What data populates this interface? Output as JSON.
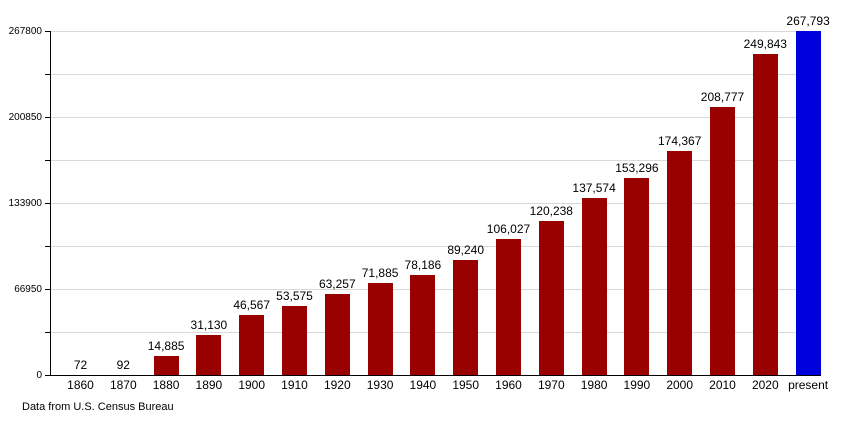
{
  "chart_data": {
    "type": "bar",
    "title": "",
    "categories": [
      "1860",
      "1870",
      "1880",
      "1890",
      "1900",
      "1910",
      "1920",
      "1930",
      "1940",
      "1950",
      "1960",
      "1970",
      "1980",
      "1990",
      "2000",
      "2010",
      "2020",
      "present"
    ],
    "values": [
      72,
      92,
      14885,
      31130,
      46567,
      53575,
      63257,
      71885,
      78186,
      89240,
      106027,
      120238,
      137574,
      153296,
      174367,
      208777,
      249843,
      267793
    ],
    "value_labels": [
      "72",
      "92",
      "14,885",
      "31,130",
      "46,567",
      "53,575",
      "63,257",
      "71,885",
      "78,186",
      "89,240",
      "106,027",
      "120,238",
      "137,574",
      "153,296",
      "174,367",
      "208,777",
      "249,843",
      "267,793"
    ],
    "xlabel": "",
    "ylabel": "",
    "ylim": [
      0,
      267800
    ],
    "y_tick_values": [
      0,
      66950,
      133900,
      200850,
      267800
    ],
    "y_tick_labels": [
      "0",
      "66950",
      "133900",
      "200850",
      "267800"
    ],
    "grid": true,
    "grid_step": 33475,
    "legend": false,
    "bar_color": "#990000",
    "highlight_color": "#0000dd",
    "highlight_index": 17,
    "grid_color": "#d9d9d9",
    "axis_color": "#000000"
  },
  "footer": {
    "note": "Data from U.S. Census Bureau"
  }
}
